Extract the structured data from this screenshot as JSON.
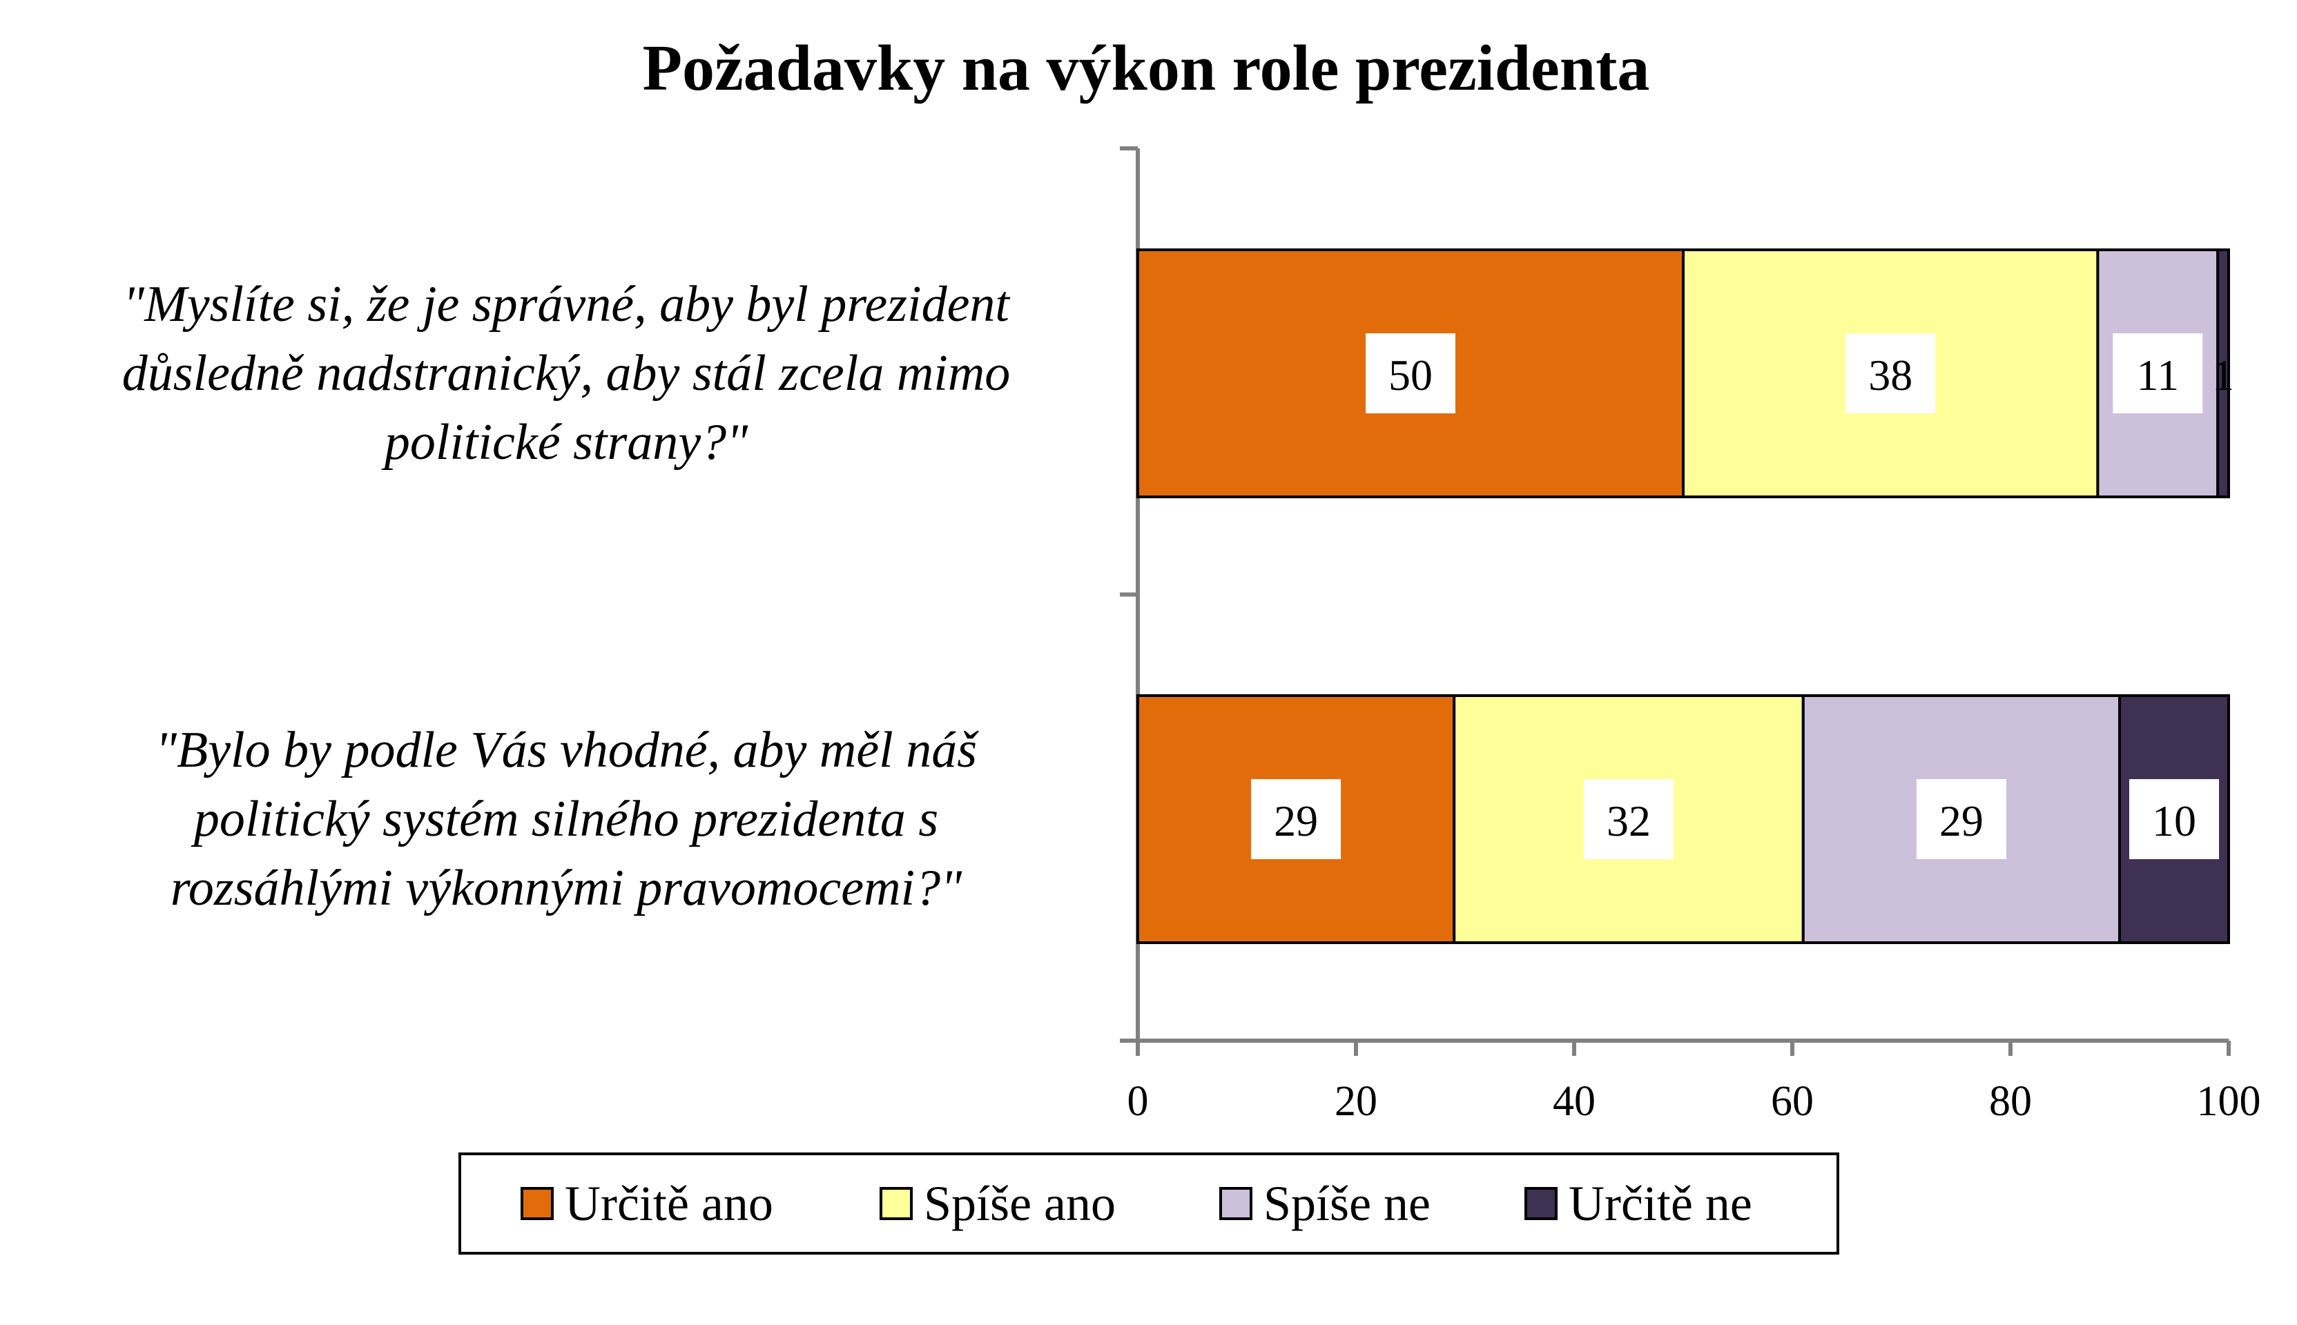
{
  "chart_data": {
    "type": "bar",
    "orientation": "horizontal",
    "stacked": true,
    "title": "Požadavky na výkon role prezidenta",
    "categories": [
      [
        "\"Myslíte si, že je správné, aby byl prezident",
        "důsledně nadstranický, aby stál zcela mimo",
        "politické strany?\""
      ],
      [
        "\"Bylo by podle Vás vhodné, aby měl náš",
        "politický systém silného prezidenta s",
        "rozsáhlými výkonnými pravomocemi?\""
      ]
    ],
    "series": [
      {
        "name": "Určitě ano",
        "color": "#E36C0A",
        "values": [
          50,
          29
        ]
      },
      {
        "name": "Spíše ano",
        "color": "#FFFF99",
        "values": [
          38,
          32
        ]
      },
      {
        "name": "Spíše ne",
        "color": "#CCC0DA",
        "values": [
          11,
          29
        ]
      },
      {
        "name": "Určitě ne",
        "color": "#3F3151",
        "values": [
          1,
          10
        ]
      }
    ],
    "xlim": [
      0,
      100
    ],
    "xticks": [
      0,
      20,
      40,
      60,
      80,
      100
    ],
    "grid": false,
    "legend_position": "bottom"
  }
}
